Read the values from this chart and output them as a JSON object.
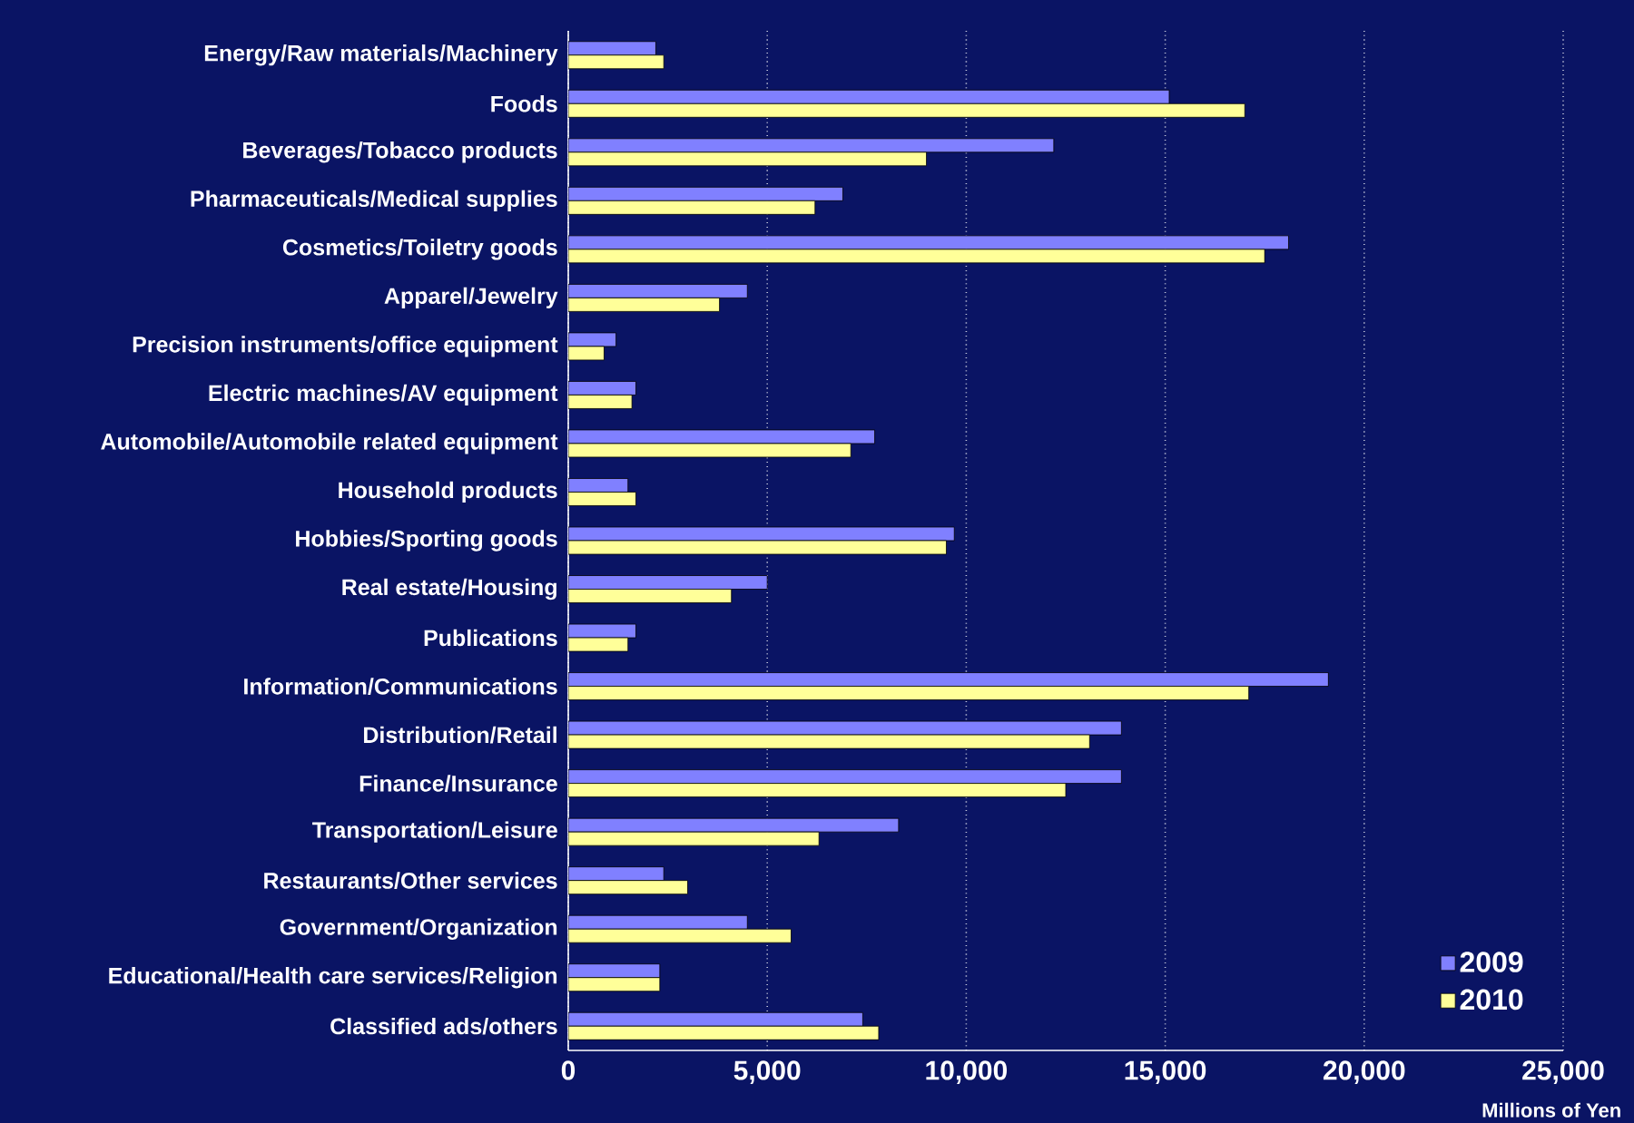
{
  "chart_data": {
    "type": "bar",
    "orientation": "horizontal",
    "xlabel": "Millions of Yen",
    "categories": [
      "Energy/Raw materials/Machinery",
      "Foods",
      "Beverages/Tobacco products",
      "Pharmaceuticals/Medical supplies",
      "Cosmetics/Toiletry goods",
      "Apparel/Jewelry",
      "Precision instruments/office equipment",
      "Electric machines/AV equipment",
      "Automobile/Automobile related equipment",
      "Household products",
      "Hobbies/Sporting goods",
      "Real estate/Housing",
      "Publications",
      "Information/Communications",
      "Distribution/Retail",
      "Finance/Insurance",
      "Transportation/Leisure",
      "Restaurants/Other services",
      "Government/Organization",
      "Educational/Health care services/Religion",
      "Classified ads/others"
    ],
    "series": [
      {
        "name": "2009",
        "color": "#8080ff",
        "values": [
          2200,
          15100,
          12200,
          6900,
          18100,
          4500,
          1200,
          1700,
          7700,
          1500,
          9700,
          5000,
          1700,
          19100,
          13900,
          13900,
          8300,
          2400,
          4500,
          2300,
          7400
        ]
      },
      {
        "name": "2010",
        "color": "#ffff99",
        "values": [
          2400,
          17000,
          9000,
          6200,
          17500,
          3800,
          900,
          1600,
          7100,
          1700,
          9500,
          4100,
          1500,
          17100,
          13100,
          12500,
          6300,
          3000,
          5600,
          2300,
          7800
        ]
      }
    ],
    "xlim": [
      0,
      25000
    ],
    "xticks": [
      0,
      {
        "value": 5000,
        "label": "5,000"
      },
      {
        "value": 10000,
        "label": "10,000"
      },
      {
        "value": 15000,
        "label": "15,000"
      },
      {
        "value": 20000,
        "label": "20,000"
      },
      {
        "value": 25000,
        "label": "25,000"
      }
    ],
    "grid": "x",
    "legend": "bottom right"
  }
}
